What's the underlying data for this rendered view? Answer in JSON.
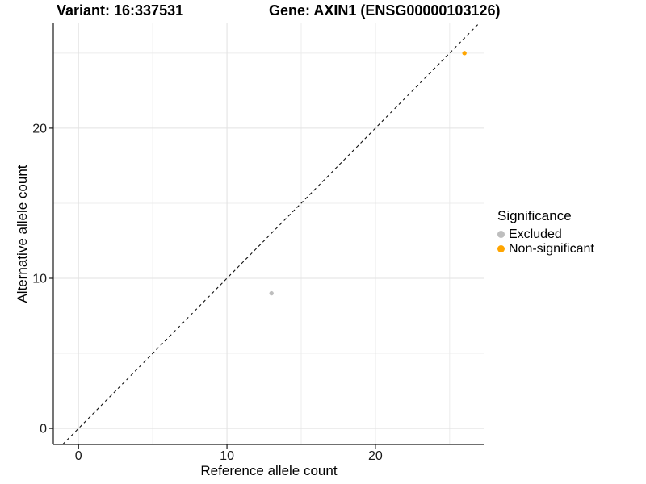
{
  "header": {
    "title_left": "Variant: 16:337531",
    "title_right": "Gene: AXIN1 (ENSG00000103126)"
  },
  "chart_data": {
    "type": "scatter",
    "title_left": "Variant: 16:337531",
    "title_right": "Gene: AXIN1 (ENSG00000103126)",
    "xlabel": "Reference allele count",
    "ylabel": "Alternative allele count",
    "xlim": [
      -1.7,
      27.35
    ],
    "ylim": [
      -1.07,
      26.98
    ],
    "x_major_ticks": [
      0,
      10,
      20
    ],
    "y_major_ticks": [
      0,
      10,
      20
    ],
    "x_minor_ticks": [
      5,
      15,
      25
    ],
    "y_minor_ticks": [
      5,
      15,
      25
    ],
    "grid": "major-and-minor, light gray on white",
    "identity_line": {
      "type": "abline",
      "slope": 1,
      "intercept": 0,
      "style": "dashed",
      "color": "#111111"
    },
    "series": [
      {
        "name": "Excluded",
        "color": "#BEBEBE",
        "points": [
          {
            "x": 13,
            "y": 9
          }
        ]
      },
      {
        "name": "Non-significant",
        "color": "#FFA500",
        "points": [
          {
            "x": 26,
            "y": 25
          }
        ]
      }
    ],
    "legend": {
      "title": "Significance",
      "position": "right"
    }
  },
  "colors": {
    "background": "#FFFFFF",
    "gridline_major": "#E2E2E2",
    "gridline_minor": "#ECECEC",
    "axis_line": "#1A1A1A",
    "excluded_point": "#BEBEBE",
    "non_significant_point": "#FFA500"
  }
}
